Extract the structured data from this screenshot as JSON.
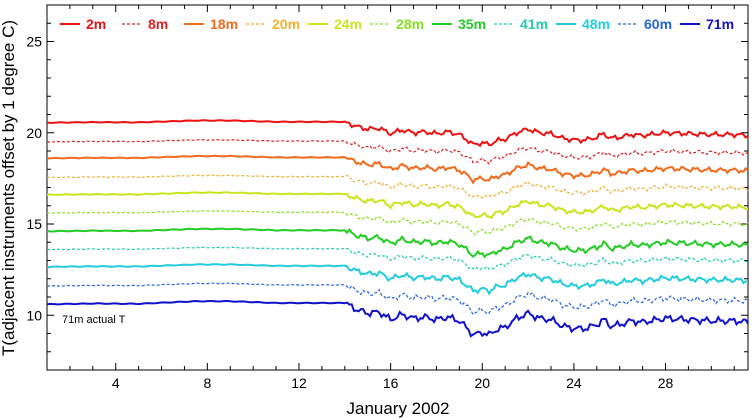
{
  "chart_data": {
    "type": "line",
    "xlabel": "January 2002",
    "ylabel": "T(adjacent instruments offset by 1 degree C)",
    "xlim": [
      1,
      31.6
    ],
    "ylim": [
      7,
      27
    ],
    "x_ticks": [
      4,
      8,
      12,
      16,
      20,
      24,
      28
    ],
    "y_ticks": [
      10,
      15,
      20,
      25
    ],
    "annotation": "71m actual T",
    "legend_position": "top",
    "series": [
      {
        "name": "2m",
        "color": "#ee1111",
        "dashed": false,
        "offset": 20.55,
        "amp": 1.0
      },
      {
        "name": "8m",
        "color": "#dd2222",
        "dashed": true,
        "offset": 19.5,
        "amp": 0.9
      },
      {
        "name": "18m",
        "color": "#f26a1b",
        "dashed": false,
        "offset": 18.6,
        "amp": 1.0
      },
      {
        "name": "20m",
        "color": "#f0b030",
        "dashed": true,
        "offset": 17.55,
        "amp": 0.9
      },
      {
        "name": "24m",
        "color": "#c8e61e",
        "dashed": false,
        "offset": 16.6,
        "amp": 1.0
      },
      {
        "name": "28m",
        "color": "#88dd22",
        "dashed": true,
        "offset": 15.6,
        "amp": 0.9
      },
      {
        "name": "35m",
        "color": "#22cc22",
        "dashed": false,
        "offset": 14.6,
        "amp": 1.1
      },
      {
        "name": "41m",
        "color": "#22ccaa",
        "dashed": true,
        "offset": 13.6,
        "amp": 0.9
      },
      {
        "name": "48m",
        "color": "#22ccdd",
        "dashed": false,
        "offset": 12.65,
        "amp": 1.1
      },
      {
        "name": "60m",
        "color": "#2266dd",
        "dashed": true,
        "offset": 11.6,
        "amp": 1.2
      },
      {
        "name": "71m",
        "color": "#1111cc",
        "dashed": false,
        "offset": 10.6,
        "amp": 1.4
      }
    ],
    "base_shape": {
      "x": [
        1,
        3,
        5,
        7.5,
        9,
        11,
        13,
        14,
        14.5,
        15,
        15.5,
        16,
        16.5,
        17,
        17.5,
        18,
        18.5,
        19,
        19.3,
        19.6,
        20,
        20.3,
        20.6,
        21,
        21.5,
        22,
        22.5,
        23,
        23.5,
        24,
        24.5,
        25,
        25.3,
        25.6,
        26,
        26.5,
        27,
        28,
        29,
        30,
        31,
        31.6
      ],
      "y": [
        0.0,
        0.03,
        0.02,
        0.12,
        0.12,
        0.05,
        0.05,
        0.05,
        -0.2,
        -0.35,
        -0.3,
        -0.6,
        -0.4,
        -0.55,
        -0.5,
        -0.6,
        -0.5,
        -0.65,
        -0.9,
        -1.2,
        -1.1,
        -1.2,
        -1.0,
        -0.9,
        -0.55,
        -0.35,
        -0.55,
        -0.6,
        -0.85,
        -0.95,
        -0.95,
        -0.8,
        -0.6,
        -0.85,
        -0.8,
        -0.65,
        -0.7,
        -0.55,
        -0.6,
        -0.65,
        -0.65,
        -0.7
      ]
    }
  }
}
